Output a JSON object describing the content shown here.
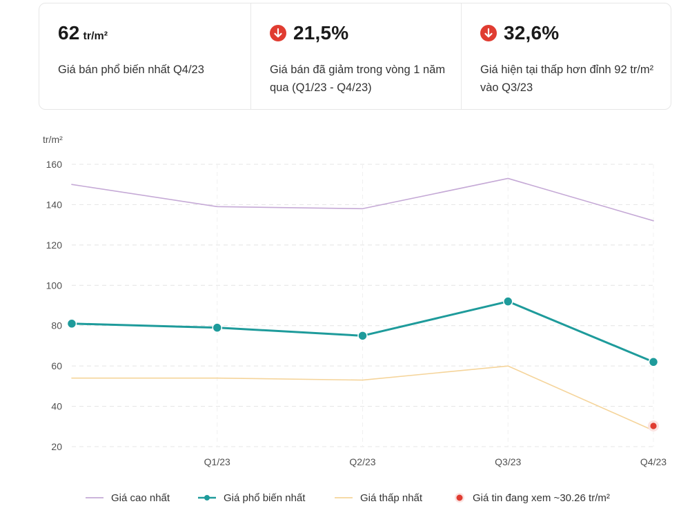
{
  "stats": [
    {
      "value": "62",
      "unit": "tr/m²",
      "desc": "Giá bán phổ biến nhất Q4/23",
      "trend": ""
    },
    {
      "value": "21,5%",
      "unit": "",
      "desc": "Giá bán đã giảm trong vòng 1 năm qua (Q1/23 - Q4/23)",
      "trend": "down"
    },
    {
      "value": "32,6%",
      "unit": "",
      "desc": "Giá hiện tại thấp hơn đỉnh 92 tr/m² vào Q3/23",
      "trend": "down"
    }
  ],
  "colors": {
    "high": "#c5a9d6",
    "common": "#1e9b9b",
    "low": "#f5d49a",
    "current": "#e03c31",
    "down_icon": "#e03c31",
    "grid": "#e4e4e4"
  },
  "chart_data": {
    "type": "line",
    "ylabel": "tr/m²",
    "ylim": [
      20,
      160
    ],
    "yticks": [
      20,
      40,
      60,
      80,
      100,
      120,
      140,
      160
    ],
    "x_labels": [
      "",
      "Q1/23",
      "Q2/23",
      "Q3/23",
      "Q4/23"
    ],
    "grid": "horizontal dashed",
    "legend_position": "bottom",
    "series": [
      {
        "name": "Giá cao nhất",
        "key": "high",
        "values": [
          150,
          139,
          138,
          153,
          132
        ],
        "markers": false
      },
      {
        "name": "Giá phổ biến nhất",
        "key": "common",
        "values": [
          81,
          79,
          75,
          92,
          62
        ],
        "markers": true
      },
      {
        "name": "Giá thấp nhất",
        "key": "low",
        "values": [
          54,
          54,
          53,
          60,
          28
        ],
        "markers": false
      }
    ],
    "highlight_point": {
      "name": "Giá tin đang xem ~30.26 tr/m²",
      "x_index": 4,
      "value": 30.26
    }
  }
}
